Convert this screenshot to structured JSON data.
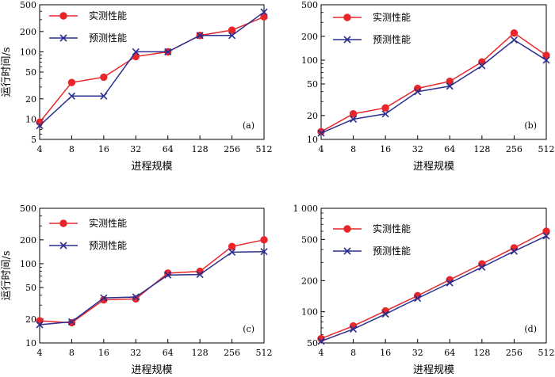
{
  "chart_data": [
    {
      "type": "line",
      "panel_label": "(a)",
      "categories": [
        "4",
        "8",
        "16",
        "32",
        "64",
        "128",
        "256",
        "512"
      ],
      "ylabel": "运行时间/s",
      "xlabel": "进程规模",
      "yscale": "log",
      "ylim": [
        5,
        500
      ],
      "yticks": [
        5,
        10,
        20,
        50,
        100,
        200,
        500
      ],
      "ytick_labels": [
        "5",
        "10",
        "20",
        "50",
        "100",
        "200",
        "500"
      ],
      "legend_position": "top-left",
      "series": [
        {
          "name": "实测性能",
          "color": "#e8262a",
          "marker": "circle",
          "values": [
            9,
            35,
            42,
            85,
            100,
            175,
            210,
            330
          ]
        },
        {
          "name": "预测性能",
          "color": "#2b2f8f",
          "marker": "x",
          "values": [
            8,
            22,
            22,
            100,
            100,
            175,
            175,
            390
          ]
        }
      ]
    },
    {
      "type": "line",
      "panel_label": "(b)",
      "categories": [
        "4",
        "8",
        "16",
        "32",
        "64",
        "128",
        "256",
        "512"
      ],
      "ylabel": "",
      "xlabel": "进程规模",
      "yscale": "log",
      "ylim": [
        10,
        500
      ],
      "yticks": [
        10,
        20,
        50,
        100,
        200,
        500
      ],
      "ytick_labels": [
        "10",
        "20",
        "50",
        "100",
        "200",
        "500"
      ],
      "legend_position": "top-center",
      "series": [
        {
          "name": "实测性能",
          "color": "#e8262a",
          "marker": "circle",
          "values": [
            12.5,
            21,
            25,
            44,
            54,
            95,
            220,
            115
          ]
        },
        {
          "name": "预测性能",
          "color": "#2b2f8f",
          "marker": "x",
          "values": [
            12,
            18,
            21,
            40,
            47,
            85,
            180,
            100
          ]
        }
      ]
    },
    {
      "type": "line",
      "panel_label": "(c)",
      "categories": [
        "4",
        "8",
        "16",
        "32",
        "64",
        "128",
        "256",
        "512"
      ],
      "ylabel": "运行时间/s",
      "xlabel": "进程规模",
      "yscale": "log",
      "ylim": [
        10,
        500
      ],
      "yticks": [
        10,
        20,
        50,
        100,
        200,
        500
      ],
      "ytick_labels": [
        "10",
        "20",
        "50",
        "100",
        "200",
        "500"
      ],
      "legend_position": "top-left",
      "series": [
        {
          "name": "实测性能",
          "color": "#e8262a",
          "marker": "circle",
          "values": [
            19,
            18,
            35,
            36,
            76,
            80,
            165,
            200
          ]
        },
        {
          "name": "预测性能",
          "color": "#2b2f8f",
          "marker": "x",
          "values": [
            17,
            18.5,
            37,
            38,
            72,
            73,
            140,
            142
          ]
        }
      ]
    },
    {
      "type": "line",
      "panel_label": "(d)",
      "categories": [
        "4",
        "8",
        "16",
        "32",
        "64",
        "128",
        "256",
        "512"
      ],
      "ylabel": "",
      "xlabel": "进程规模",
      "yscale": "log",
      "ylim": [
        50,
        1000
      ],
      "yticks": [
        50,
        100,
        200,
        500,
        1000
      ],
      "ytick_labels": [
        "50",
        "100",
        "200",
        "500",
        "1 000"
      ],
      "legend_position": "top-left",
      "series": [
        {
          "name": "实测性能",
          "color": "#e8262a",
          "marker": "circle",
          "values": [
            55,
            73,
            102,
            143,
            204,
            290,
            415,
            600
          ]
        },
        {
          "name": "预测性能",
          "color": "#2b2f8f",
          "marker": "x",
          "values": [
            52,
            68,
            95,
            135,
            190,
            270,
            385,
            540
          ]
        }
      ]
    }
  ]
}
